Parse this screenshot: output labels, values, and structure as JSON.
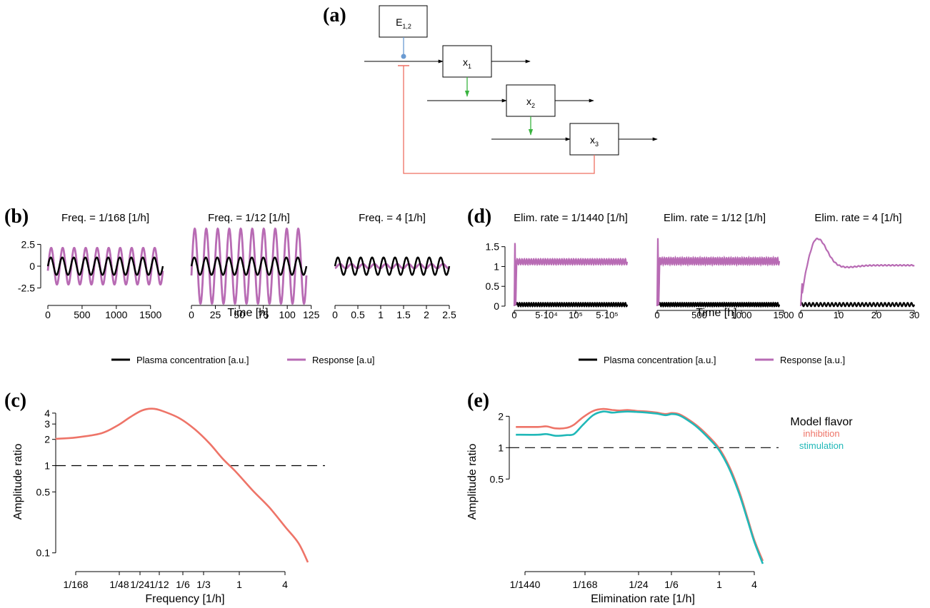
{
  "panel_labels": {
    "a": "(a)",
    "b": "(b)",
    "c": "(c)",
    "d": "(d)",
    "e": "(e)"
  },
  "colors": {
    "plasma": "#000000",
    "response": "#b86bb4",
    "inhibition": "#ee7468",
    "stimulation": "#20b8b8",
    "activate": "#6b9bd2",
    "feed": "#39b33f",
    "feedback": "#ef6f62"
  },
  "diagram": {
    "nodes": [
      {
        "id": "E",
        "base": "E",
        "sub": "1,2"
      },
      {
        "id": "x1",
        "base": "x",
        "sub": "1"
      },
      {
        "id": "x2",
        "base": "x",
        "sub": "2"
      },
      {
        "id": "x3",
        "base": "x",
        "sub": "3"
      }
    ]
  },
  "legend_b": {
    "plasma": "Plasma concentration [a.u.]",
    "response": "Response [a.u]"
  },
  "legend_d": {
    "plasma": "Plasma concentration [a.u.]",
    "response": "Response [a.u.]"
  },
  "legend_e": {
    "title": "Model flavor",
    "inhibition": "inhibition",
    "stimulation": "stimulation"
  },
  "chart_data": [
    {
      "id": "b",
      "type": "line",
      "xlabel": "Time [h]",
      "ylim": [
        -4.5,
        4.5
      ],
      "yticks": [
        "2.5",
        "0",
        "-2.5"
      ],
      "subplots": [
        {
          "title": "Freq. = 1/168 [1/h]",
          "xlim": [
            0,
            1680
          ],
          "xticks": [
            "0",
            "500",
            "1000",
            "1500"
          ],
          "cycles": 10,
          "plasma_amplitude": 1,
          "response_amplitude": 2.1,
          "response_offset": 0
        },
        {
          "title": "Freq. = 1/12 [1/h]",
          "xlim": [
            0,
            120
          ],
          "xticks": [
            "0",
            "25",
            "50",
            "75",
            "100",
            "125"
          ],
          "cycles": 10,
          "plasma_amplitude": 1,
          "response_amplitude": 4.3,
          "response_offset": 0
        },
        {
          "title": "Freq. = 4 [1/h]",
          "xlim": [
            0,
            2.5
          ],
          "xticks": [
            "0",
            "0.5",
            "1",
            "1.5",
            "2",
            "2.5"
          ],
          "cycles": 10,
          "plasma_amplitude": 1,
          "response_amplitude": 0.25,
          "response_offset": 0
        }
      ]
    },
    {
      "id": "c",
      "type": "line",
      "xlabel": "Frequency [1/h]",
      "ylabel": "Amplitude ratio",
      "yscale": "log",
      "xscale": "log",
      "ylim": [
        0.075,
        5.5
      ],
      "yticks": [
        {
          "v": 4,
          "label": "4"
        },
        {
          "v": 3,
          "label": "3"
        },
        {
          "v": 2,
          "label": "2"
        },
        {
          "v": 1,
          "label": "1"
        },
        {
          "v": 0.5,
          "label": "0.5"
        },
        {
          "v": 0.1,
          "label": "0.1"
        }
      ],
      "xticks": [
        {
          "v": 0.005952,
          "label": "1/168"
        },
        {
          "v": 0.020833,
          "label": "1/48"
        },
        {
          "v": 0.041667,
          "label": "1/24"
        },
        {
          "v": 0.083333,
          "label": "1/12"
        },
        {
          "v": 0.166667,
          "label": "1/6"
        },
        {
          "v": 0.333333,
          "label": "1/3"
        },
        {
          "v": 1,
          "label": "1"
        },
        {
          "v": 4,
          "label": "4"
        }
      ],
      "reference_line": 1,
      "series": [
        {
          "values": [
            [
              0.00333,
              2.03
            ],
            [
              0.006,
              2.1
            ],
            [
              0.0125,
              2.35
            ],
            [
              0.02,
              2.9
            ],
            [
              0.03,
              3.6
            ],
            [
              0.045,
              4.3
            ],
            [
              0.065,
              4.5
            ],
            [
              0.09,
              4.25
            ],
            [
              0.15,
              3.5
            ],
            [
              0.25,
              2.6
            ],
            [
              0.4,
              1.8
            ],
            [
              0.6,
              1.2
            ],
            [
              0.9,
              0.85
            ],
            [
              1.5,
              0.52
            ],
            [
              2.5,
              0.33
            ],
            [
              4,
              0.2
            ],
            [
              6,
              0.13
            ],
            [
              8,
              0.078
            ]
          ]
        }
      ]
    },
    {
      "id": "d",
      "type": "line",
      "xlabel": "Time [h]",
      "ylim": [
        -0.1,
        1.9
      ],
      "yticks": [
        "1.5",
        "1",
        "0.5",
        "0"
      ],
      "subplots": [
        {
          "title": "Elim. rate = 1/1440 [1/h]",
          "xlim": [
            -20000,
            800000
          ],
          "xticks": [
            {
              "v": 0,
              "label": "0"
            },
            {
              "v": 50000,
              "label": "5·10⁴"
            },
            {
              "v": 100000,
              "label": "10⁵"
            },
            {
              "v": 500000,
              "label": "5·10⁵"
            }
          ],
          "spike": 1.72,
          "response_base": 1.05,
          "response_amplitude": 0.14,
          "cycles": 48
        },
        {
          "title": "Elim. rate = 1/12 [1/h]",
          "xlim": [
            -20,
            1500
          ],
          "xticks": [
            {
              "v": 0,
              "label": "0"
            },
            {
              "v": 500,
              "label": "500"
            },
            {
              "v": 1000,
              "label": "1000"
            },
            {
              "v": 1500,
              "label": "1500"
            }
          ],
          "spike": 1.85,
          "response_base": 1.05,
          "response_amplitude": 0.17,
          "cycles": 55
        },
        {
          "title": "Elim. rate = 4 [1/h]",
          "xlim": [
            -1,
            31
          ],
          "xticks": [
            {
              "v": 0,
              "label": "0"
            },
            {
              "v": 10,
              "label": "10"
            },
            {
              "v": 20,
              "label": "20"
            },
            {
              "v": 30,
              "label": "30"
            }
          ],
          "peak": 1.7,
          "settle": 1.03,
          "cycles": 30
        }
      ]
    },
    {
      "id": "e",
      "type": "line",
      "xlabel": "Elimination rate [1/h]",
      "ylabel": "Amplitude ratio",
      "yscale": "log",
      "xscale": "log",
      "ylim": [
        0.07,
        2.8
      ],
      "yticks": [
        {
          "v": 2,
          "label": "2"
        },
        {
          "v": 1,
          "label": "1"
        },
        {
          "v": 0.5,
          "label": "0.5"
        }
      ],
      "xticks": [
        {
          "v": 0.000694,
          "label": "1/1440"
        },
        {
          "v": 0.005952,
          "label": "1/168"
        },
        {
          "v": 0.041667,
          "label": "1/24"
        },
        {
          "v": 0.166667,
          "label": "1/6"
        },
        {
          "v": 1,
          "label": "1"
        },
        {
          "v": 4,
          "label": "4"
        }
      ],
      "reference_line": 1,
      "series": [
        {
          "name": "inhibition",
          "values": [
            [
              0.0005,
              1.58
            ],
            [
              0.0011,
              1.58
            ],
            [
              0.0015,
              1.6
            ],
            [
              0.0021,
              1.53
            ],
            [
              0.0031,
              1.55
            ],
            [
              0.004,
              1.66
            ],
            [
              0.0055,
              1.95
            ],
            [
              0.008,
              2.25
            ],
            [
              0.0115,
              2.35
            ],
            [
              0.016,
              2.3
            ],
            [
              0.021,
              2.27
            ],
            [
              0.028,
              2.3
            ],
            [
              0.04,
              2.25
            ],
            [
              0.06,
              2.22
            ],
            [
              0.09,
              2.17
            ],
            [
              0.13,
              2.1
            ],
            [
              0.17,
              2.15
            ],
            [
              0.22,
              2.1
            ],
            [
              0.3,
              1.9
            ],
            [
              0.45,
              1.6
            ],
            [
              0.7,
              1.25
            ],
            [
              1,
              0.98
            ],
            [
              1.5,
              0.65
            ],
            [
              2.2,
              0.38
            ],
            [
              3,
              0.22
            ],
            [
              4,
              0.13
            ],
            [
              5.6,
              0.082
            ]
          ]
        },
        {
          "name": "stimulation",
          "values": [
            [
              0.0005,
              1.33
            ],
            [
              0.0011,
              1.33
            ],
            [
              0.0015,
              1.35
            ],
            [
              0.0021,
              1.3
            ],
            [
              0.0031,
              1.32
            ],
            [
              0.004,
              1.35
            ],
            [
              0.0055,
              1.65
            ],
            [
              0.008,
              2.05
            ],
            [
              0.0115,
              2.22
            ],
            [
              0.016,
              2.17
            ],
            [
              0.021,
              2.2
            ],
            [
              0.028,
              2.22
            ],
            [
              0.04,
              2.2
            ],
            [
              0.06,
              2.17
            ],
            [
              0.09,
              2.12
            ],
            [
              0.13,
              2.05
            ],
            [
              0.17,
              2.1
            ],
            [
              0.22,
              2.05
            ],
            [
              0.3,
              1.85
            ],
            [
              0.45,
              1.55
            ],
            [
              0.7,
              1.2
            ],
            [
              1,
              0.94
            ],
            [
              1.5,
              0.62
            ],
            [
              2.2,
              0.36
            ],
            [
              3,
              0.21
            ],
            [
              4,
              0.125
            ],
            [
              5.6,
              0.077
            ]
          ]
        }
      ]
    }
  ]
}
